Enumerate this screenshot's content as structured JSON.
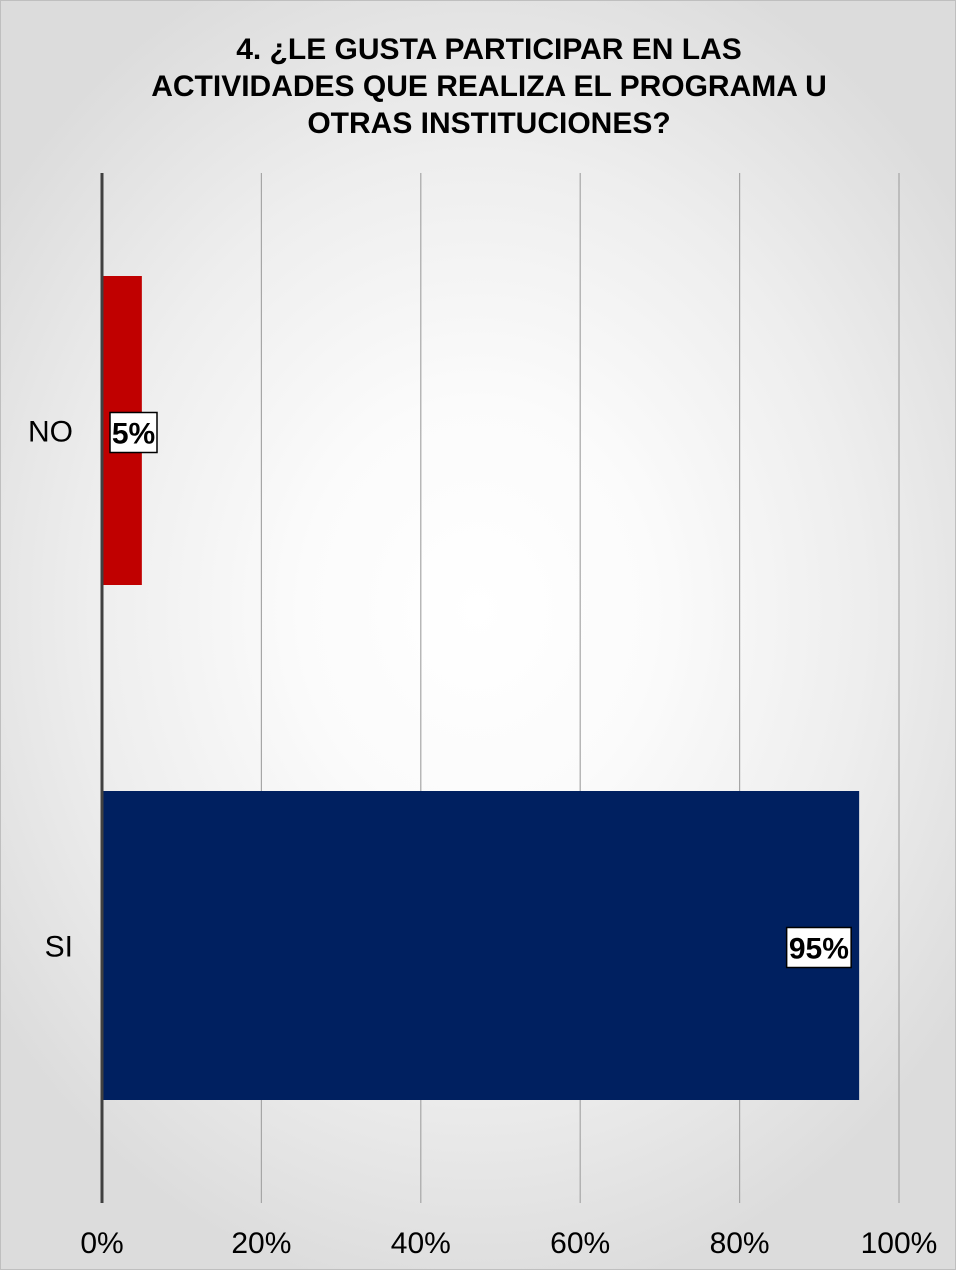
{
  "chart_data": {
    "type": "bar",
    "orientation": "horizontal",
    "title_lines": [
      "4. ¿LE GUSTA PARTICIPAR EN LAS",
      "ACTIVIDADES QUE REALIZA EL PROGRAMA U",
      "OTRAS INSTITUCIONES?"
    ],
    "categories": [
      "NO",
      "SI"
    ],
    "values": [
      5,
      95
    ],
    "data_labels": [
      "5%",
      "95%"
    ],
    "colors": [
      "#C00000",
      "#002060"
    ],
    "xlim": [
      0,
      100
    ],
    "x_ticks": [
      0,
      20,
      40,
      60,
      80,
      100
    ],
    "x_tick_labels": [
      "0%",
      "20%",
      "40%",
      "60%",
      "80%",
      "100%"
    ],
    "grid": true,
    "xlabel": "",
    "ylabel": ""
  }
}
